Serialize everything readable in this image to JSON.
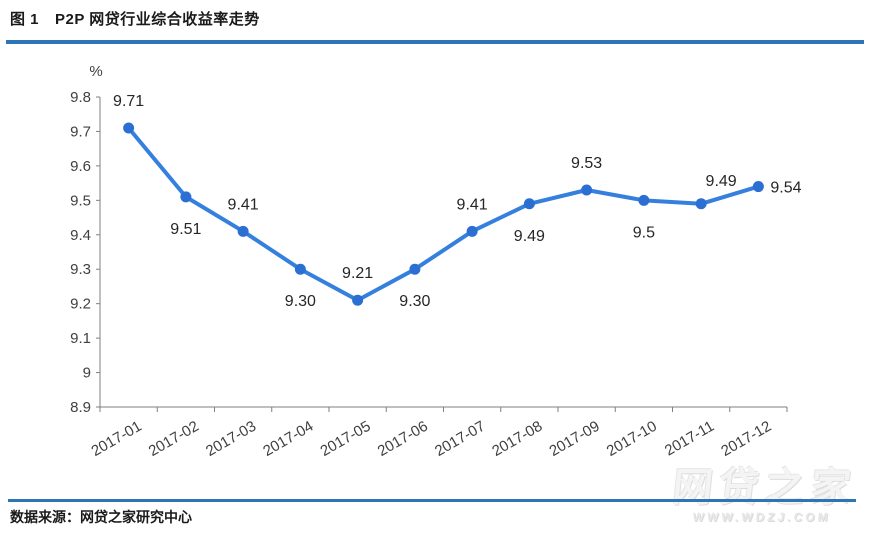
{
  "header": {
    "figure_label": "图 1",
    "title": "P2P 网贷行业综合收益率走势"
  },
  "footer": {
    "source": "数据来源：网贷之家研究中心"
  },
  "watermark": {
    "text": "网贷之家",
    "subtext": "WWW.WDZJ.COM"
  },
  "chart_data": {
    "type": "line",
    "title": "P2P 网贷行业综合收益率走势",
    "unit_label": "%",
    "categories": [
      "2017-01",
      "2017-02",
      "2017-03",
      "2017-04",
      "2017-05",
      "2017-06",
      "2017-07",
      "2017-08",
      "2017-09",
      "2017-10",
      "2017-11",
      "2017-12"
    ],
    "series": [
      {
        "name": "综合收益率",
        "values": [
          9.71,
          9.51,
          9.41,
          9.3,
          9.21,
          9.3,
          9.41,
          9.49,
          9.53,
          9.5,
          9.49,
          9.54
        ]
      }
    ],
    "data_labels": [
      "9.71",
      "9.51",
      "9.41",
      "9.30",
      "9.21",
      "9.30",
      "9.41",
      "9.49",
      "9.53",
      "9.5",
      "9.49",
      "9.54"
    ],
    "label_positions": [
      "above",
      "below",
      "above",
      "below",
      "above",
      "below",
      "above",
      "below",
      "above",
      "below",
      "above-right",
      "right"
    ],
    "ylim": [
      8.9,
      9.8
    ],
    "ytick_step": 0.1,
    "yticks": [
      "9.8",
      "9.7",
      "9.6",
      "9.5",
      "9.4",
      "9.3",
      "9.2",
      "9.1",
      "9",
      "8.9"
    ],
    "grid": false,
    "legend_position": "none",
    "xlabel": "",
    "ylabel": "",
    "colors": {
      "line": "#3580de",
      "marker": "#2b6fd3",
      "axis": "#7f7f7f",
      "tick_label": "#404040",
      "data_label": "#262626"
    }
  }
}
